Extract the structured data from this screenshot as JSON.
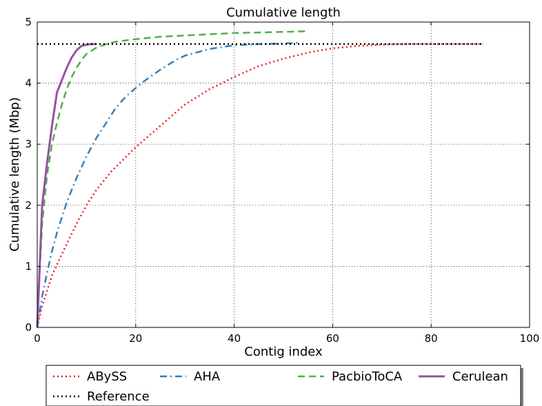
{
  "chart_data": {
    "type": "line",
    "title": "Cumulative length",
    "xlabel": "Contig index",
    "ylabel": "Cumulative length (Mbp)",
    "xlim": [
      0,
      100
    ],
    "ylim": [
      0,
      5
    ],
    "xticks": [
      0,
      20,
      40,
      60,
      80,
      100
    ],
    "yticks": [
      0,
      1,
      2,
      3,
      4,
      5
    ],
    "grid": true,
    "legend_position": "bottom, outside plot area",
    "series": [
      {
        "name": "ABySS",
        "color": "#e41a1c",
        "style": "dotted",
        "x": [
          0,
          1,
          2,
          3,
          5,
          8,
          10,
          12,
          15,
          20,
          25,
          30,
          35,
          40,
          45,
          50,
          55,
          60,
          65,
          70,
          75,
          80,
          85,
          90.5
        ],
        "y": [
          0,
          0.35,
          0.6,
          0.85,
          1.2,
          1.7,
          2.0,
          2.25,
          2.55,
          2.95,
          3.3,
          3.65,
          3.9,
          4.1,
          4.28,
          4.4,
          4.5,
          4.57,
          4.61,
          4.63,
          4.64,
          4.64,
          4.64,
          4.64
        ]
      },
      {
        "name": "AHA",
        "color": "#377eb8",
        "style": "dashdot",
        "x": [
          0,
          1,
          2,
          3,
          4,
          5,
          6,
          8,
          10,
          12,
          14,
          16,
          18,
          20,
          22,
          25,
          28,
          30,
          35,
          40,
          45,
          50,
          53
        ],
        "y": [
          0,
          0.5,
          0.9,
          1.25,
          1.55,
          1.8,
          2.05,
          2.45,
          2.8,
          3.1,
          3.35,
          3.6,
          3.78,
          3.92,
          4.05,
          4.22,
          4.37,
          4.45,
          4.56,
          4.62,
          4.64,
          4.65,
          4.66
        ]
      },
      {
        "name": "PacbioToCA",
        "color": "#4daf4a",
        "style": "dashed",
        "x": [
          0,
          0.5,
          1,
          2,
          3,
          4,
          5,
          6,
          7,
          8,
          9,
          10,
          12,
          14,
          16,
          20,
          25,
          30,
          35,
          40,
          45,
          50,
          55
        ],
        "y": [
          0,
          0.9,
          1.7,
          2.5,
          3.0,
          3.35,
          3.65,
          3.9,
          4.1,
          4.25,
          4.38,
          4.48,
          4.58,
          4.64,
          4.68,
          4.72,
          4.76,
          4.78,
          4.8,
          4.82,
          4.83,
          4.84,
          4.85
        ]
      },
      {
        "name": "Cerulean",
        "color": "#984ea3",
        "style": "solid",
        "x": [
          0,
          0.5,
          1,
          2,
          3,
          4,
          5,
          6,
          7,
          8,
          9,
          10,
          11,
          12
        ],
        "y": [
          0,
          1.0,
          2.0,
          2.7,
          3.3,
          3.85,
          4.05,
          4.25,
          4.42,
          4.54,
          4.61,
          4.63,
          4.64,
          4.64
        ]
      },
      {
        "name": "Reference",
        "color": "#000000",
        "style": "dotted",
        "x": [
          0,
          90.5
        ],
        "y": [
          4.64,
          4.64
        ]
      }
    ]
  }
}
